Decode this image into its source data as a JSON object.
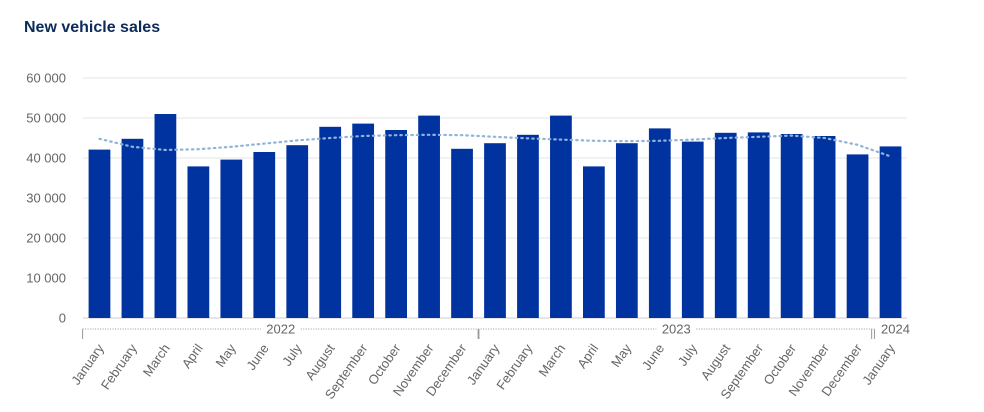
{
  "chart_data": {
    "type": "bar",
    "title": "New vehicle sales",
    "xlabel": "",
    "ylabel": "",
    "ylim": [
      0,
      60000
    ],
    "y_ticks": [
      "0",
      "10 000",
      "20 000",
      "30 000",
      "40 000",
      "50 000",
      "60 000"
    ],
    "y_tick_values": [
      0,
      10000,
      20000,
      30000,
      40000,
      50000,
      60000
    ],
    "grid": true,
    "bar_color": "#0033a0",
    "trend_color": "#8fb3d9",
    "categories": [
      "January",
      "February",
      "March",
      "April",
      "May",
      "June",
      "July",
      "August",
      "September",
      "October",
      "November",
      "December",
      "January",
      "February",
      "March",
      "April",
      "May",
      "June",
      "July",
      "August",
      "September",
      "October",
      "November",
      "December",
      "January"
    ],
    "values": [
      42100,
      44800,
      51000,
      37900,
      39600,
      41500,
      43200,
      47800,
      48600,
      47000,
      50600,
      42300,
      43700,
      45800,
      50600,
      37900,
      43700,
      47400,
      44100,
      46300,
      46400,
      46000,
      45500,
      40900,
      42900
    ],
    "trend": [
      44800,
      42800,
      42000,
      42200,
      42800,
      43600,
      44400,
      45000,
      45500,
      45700,
      45800,
      45700,
      45300,
      44900,
      44600,
      44300,
      44200,
      44300,
      44600,
      45000,
      45300,
      45600,
      45000,
      43300,
      40400
    ],
    "year_groups": [
      {
        "label": "2022",
        "start": 0,
        "end": 11
      },
      {
        "label": "2023",
        "start": 12,
        "end": 23
      },
      {
        "label": "2024",
        "start": 24,
        "end": 24
      }
    ]
  }
}
